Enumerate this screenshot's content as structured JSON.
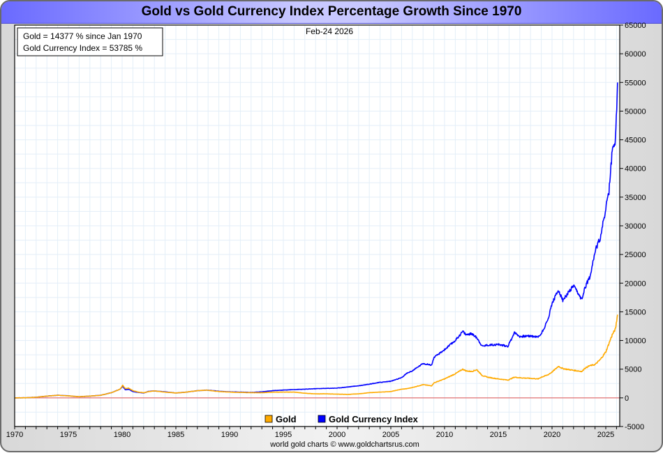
{
  "chart_data": {
    "type": "line",
    "title": "Gold vs Gold Currency Index Percentage Growth Since 1970",
    "date_label": "Feb-24  2026",
    "annotations": [
      "Gold = 14377 % since Jan 1970",
      "Gold Currency Index = 53785 %"
    ],
    "credit": "world gold charts © www.goldchartsrus.com",
    "xlabel": "",
    "ylabel": "",
    "xlim": [
      1970,
      2026.3
    ],
    "ylim": [
      -5000,
      65000
    ],
    "x_ticks": [
      1970,
      1975,
      1980,
      1985,
      1990,
      1995,
      2000,
      2005,
      2010,
      2015,
      2020,
      2025
    ],
    "y_ticks": [
      -5000,
      0,
      5000,
      10000,
      15000,
      20000,
      25000,
      30000,
      35000,
      40000,
      45000,
      50000,
      55000,
      60000,
      65000
    ],
    "y_axis_side": "right",
    "grid": true,
    "legend_position": "bottom-center",
    "zero_line_color": "#e07070",
    "series": [
      {
        "name": "Gold",
        "color": "#ffaa00",
        "x": [
          1970,
          1971,
          1972,
          1973,
          1974,
          1975,
          1976,
          1977,
          1978,
          1979,
          1979.8,
          1980.05,
          1980.3,
          1980.6,
          1981,
          1981.5,
          1982,
          1982.5,
          1983,
          1984,
          1985,
          1986,
          1987,
          1987.9,
          1988.5,
          1989,
          1990,
          1991,
          1992,
          1993,
          1994,
          1995,
          1996,
          1997,
          1998,
          1999,
          2000,
          2001,
          2002,
          2003,
          2004,
          2005,
          2006,
          2006.5,
          2007,
          2008,
          2008.8,
          2009,
          2010,
          2011,
          2011.7,
          2012,
          2012.5,
          2013,
          2013.5,
          2014,
          2015,
          2015.9,
          2016.5,
          2017,
          2018,
          2018.7,
          2019,
          2019.6,
          2020,
          2020.6,
          2021,
          2022,
          2022.8,
          2023,
          2023.5,
          2024,
          2024.5,
          2025,
          2025.3,
          2025.6,
          2025.9,
          2026.1
        ],
        "values": [
          0,
          20,
          100,
          300,
          450,
          350,
          200,
          300,
          450,
          900,
          1500,
          2200,
          1600,
          1700,
          1250,
          1000,
          900,
          1100,
          1200,
          1000,
          850,
          1000,
          1250,
          1350,
          1200,
          1100,
          1000,
          950,
          900,
          900,
          1000,
          1000,
          1000,
          800,
          700,
          700,
          650,
          600,
          700,
          900,
          1000,
          1100,
          1500,
          1600,
          1800,
          2300,
          2100,
          2600,
          3300,
          4200,
          5000,
          4700,
          4600,
          4900,
          3900,
          3600,
          3300,
          3100,
          3600,
          3500,
          3400,
          3300,
          3600,
          4000,
          4500,
          5500,
          5100,
          4800,
          4600,
          5100,
          5600,
          5800,
          6700,
          8000,
          9500,
          11000,
          12000,
          14500
        ]
      },
      {
        "name": "Gold Currency Index",
        "color": "#0000ff",
        "x": [
          1970,
          1971,
          1972,
          1973,
          1974,
          1975,
          1976,
          1977,
          1978,
          1979,
          1979.8,
          1980.05,
          1980.3,
          1980.6,
          1981,
          1981.5,
          1982,
          1982.5,
          1983,
          1984,
          1985,
          1986,
          1987,
          1987.9,
          1988.5,
          1989,
          1990,
          1991,
          1992,
          1993,
          1994,
          1995,
          1996,
          1997,
          1998,
          1999,
          2000,
          2001,
          2002,
          2003,
          2004,
          2005,
          2006,
          2006.5,
          2007,
          2008,
          2008.8,
          2009,
          2010,
          2011,
          2011.7,
          2012,
          2012.5,
          2013,
          2013.5,
          2014,
          2015,
          2015.9,
          2016.5,
          2017,
          2018,
          2018.7,
          2019,
          2019.6,
          2020,
          2020.6,
          2021,
          2022,
          2022.8,
          2023,
          2023.5,
          2024,
          2024.5,
          2025,
          2025.3,
          2025.6,
          2025.9,
          2026.1
        ],
        "values": [
          0,
          20,
          100,
          300,
          450,
          350,
          200,
          300,
          450,
          900,
          1500,
          2000,
          1400,
          1500,
          1100,
          950,
          850,
          1150,
          1200,
          1050,
          850,
          1000,
          1250,
          1350,
          1250,
          1150,
          1050,
          1000,
          950,
          1050,
          1250,
          1350,
          1450,
          1500,
          1600,
          1650,
          1700,
          1900,
          2100,
          2400,
          2700,
          2900,
          3500,
          4300,
          4700,
          6000,
          5700,
          7000,
          8400,
          10000,
          11600,
          11000,
          11200,
          10500,
          9000,
          9200,
          9300,
          9000,
          11400,
          10700,
          10800,
          10600,
          11200,
          13500,
          16500,
          18800,
          17000,
          19500,
          17000,
          19000,
          21000,
          25500,
          28000,
          33000,
          36000,
          43000,
          45000,
          55000
        ]
      }
    ]
  }
}
